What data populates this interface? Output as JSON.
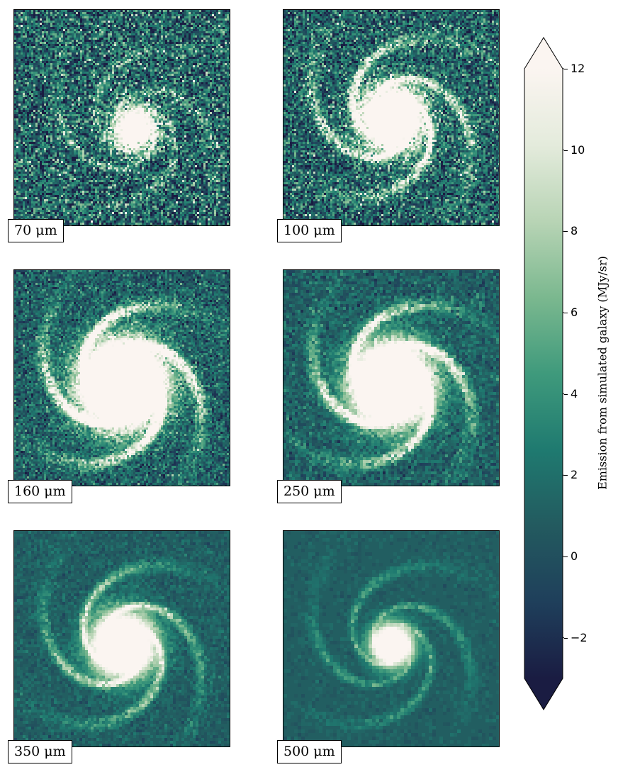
{
  "chart_data": {
    "type": "heatmap",
    "panels": [
      {
        "label": "70 μm",
        "wavelength_um": 70
      },
      {
        "label": "100 μm",
        "wavelength_um": 100
      },
      {
        "label": "160 μm",
        "wavelength_um": 160
      },
      {
        "label": "250 μm",
        "wavelength_um": 250
      },
      {
        "label": "350 μm",
        "wavelength_um": 350
      },
      {
        "label": "500 μm",
        "wavelength_um": 500
      }
    ],
    "colorbar": {
      "label": "Emission from simulated galaxy (MJy/sr)",
      "vmin": -3,
      "vmax": 12,
      "extend": "both",
      "ticks": [
        -2,
        0,
        2,
        4,
        6,
        8,
        10,
        12
      ],
      "tick_labels": [
        "−2",
        "0",
        "2",
        "4",
        "6",
        "8",
        "10",
        "12"
      ],
      "colormap_stops": [
        "#1a1c42",
        "#1f3f5b",
        "#235a5f",
        "#1f7a70",
        "#3f9a7c",
        "#7bb88f",
        "#b8d4b5",
        "#e4ebdc",
        "#fbf5f1"
      ]
    }
  }
}
